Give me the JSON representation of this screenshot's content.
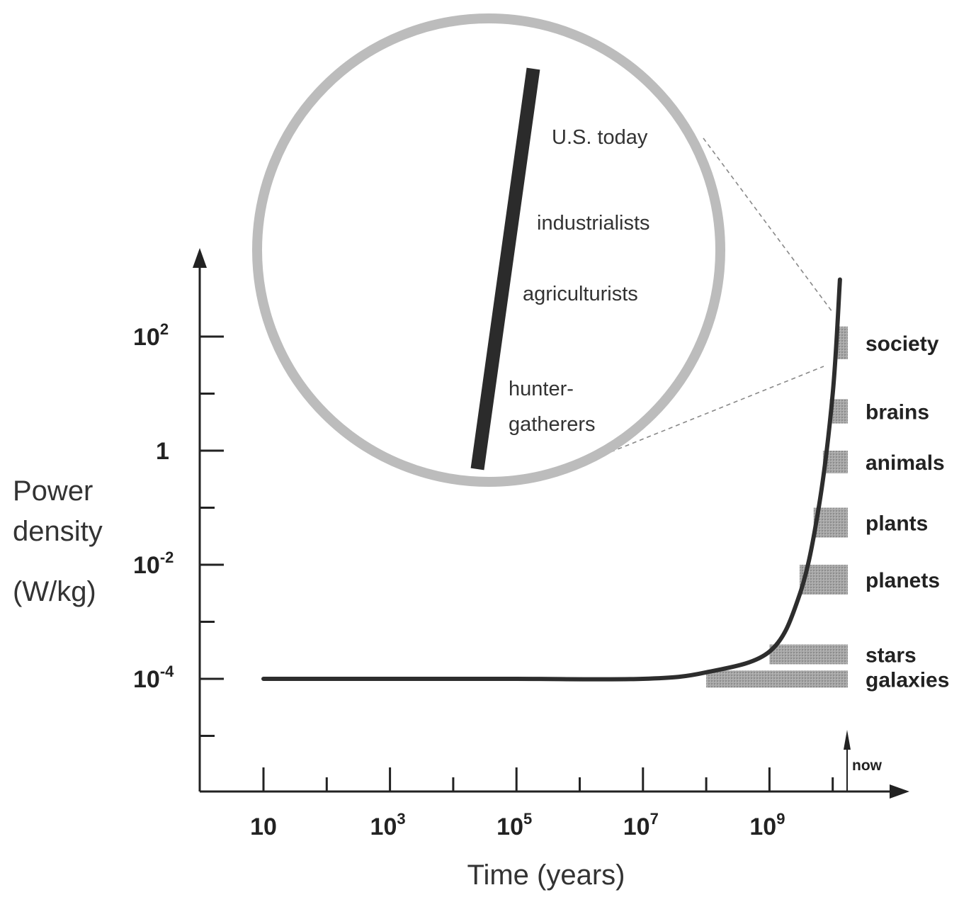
{
  "chart_data": {
    "type": "line",
    "title": "",
    "xlabel": "Time (years)",
    "ylabel_lines": [
      "Power",
      "density",
      "(W/kg)"
    ],
    "x_scale": "log",
    "y_scale": "log",
    "x_ticks": [
      {
        "base": "10",
        "exp": ""
      },
      {
        "base": "10",
        "exp": "3"
      },
      {
        "base": "10",
        "exp": "5"
      },
      {
        "base": "10",
        "exp": "7"
      },
      {
        "base": "10",
        "exp": "9"
      }
    ],
    "y_ticks": [
      {
        "base": "10",
        "exp": "2"
      },
      {
        "base": "1",
        "exp": ""
      },
      {
        "base": "10",
        "exp": "-2"
      },
      {
        "base": "10",
        "exp": "-4"
      }
    ],
    "series": [
      {
        "x_years": [
          10,
          1000,
          100000,
          10000000,
          100000000,
          1000000000,
          3000000000,
          6000000000,
          10000000000,
          13000000000
        ],
        "y_wkg": [
          0.0001,
          0.0001,
          0.0001,
          0.0001,
          0.00013,
          0.0003,
          0.003,
          0.1,
          10,
          1000
        ]
      }
    ],
    "categories": [
      {
        "name": "society",
        "x_start": 11000000000,
        "y_low": 40,
        "y_high": 150
      },
      {
        "name": "brains",
        "x_start": 9000000000,
        "y_low": 3,
        "y_high": 8
      },
      {
        "name": "animals",
        "x_start": 7000000000,
        "y_low": 0.4,
        "y_high": 1
      },
      {
        "name": "plants",
        "x_start": 5000000000,
        "y_low": 0.03,
        "y_high": 0.1
      },
      {
        "name": "planets",
        "x_start": 3000000000,
        "y_low": 0.003,
        "y_high": 0.01
      },
      {
        "name": "stars",
        "x_start": 1000000000,
        "y_low": 0.00018,
        "y_high": 0.0004
      },
      {
        "name": "galaxies",
        "x_start": 100000000,
        "y_low": 7e-05,
        "y_high": 0.00014
      }
    ],
    "now_label": "now",
    "inset": {
      "labels": [
        "U.S. today",
        "industrialists",
        "agriculturists",
        "hunter-",
        "gatherers"
      ]
    },
    "grid": false,
    "legend": "none"
  }
}
